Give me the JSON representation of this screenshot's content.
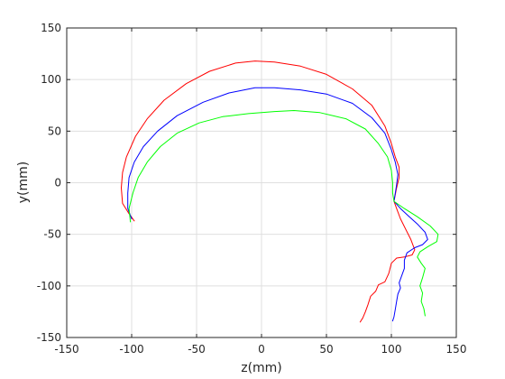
{
  "chart_data": {
    "type": "line",
    "xlabel": "z(mm)",
    "ylabel": "y(mm)",
    "xlim": [
      -150,
      150
    ],
    "ylim": [
      -150,
      150
    ],
    "xticks": [
      -150,
      -100,
      -50,
      0,
      50,
      100,
      150
    ],
    "yticks": [
      -150,
      -100,
      -50,
      0,
      50,
      100,
      150
    ],
    "grid": true,
    "series": [
      {
        "color": "#ff0000",
        "points": [
          [
            -98,
            -37
          ],
          [
            -102,
            -30
          ],
          [
            -107,
            -20
          ],
          [
            -108,
            -5
          ],
          [
            -107,
            10
          ],
          [
            -104,
            25
          ],
          [
            -97,
            45
          ],
          [
            -88,
            62
          ],
          [
            -75,
            80
          ],
          [
            -58,
            96
          ],
          [
            -40,
            108
          ],
          [
            -20,
            116
          ],
          [
            -5,
            118
          ],
          [
            10,
            117
          ],
          [
            30,
            113
          ],
          [
            50,
            105
          ],
          [
            70,
            91
          ],
          [
            85,
            75
          ],
          [
            95,
            55
          ],
          [
            100,
            38
          ],
          [
            103,
            25
          ],
          [
            106,
            15
          ],
          [
            106,
            5
          ],
          [
            104,
            -5
          ],
          [
            102,
            -18
          ],
          [
            104,
            -25
          ],
          [
            107,
            -35
          ],
          [
            111,
            -45
          ],
          [
            115,
            -55
          ],
          [
            118,
            -65
          ],
          [
            116,
            -70
          ],
          [
            110,
            -72
          ],
          [
            104,
            -73
          ],
          [
            100,
            -78
          ],
          [
            98,
            -88
          ],
          [
            95,
            -96
          ],
          [
            90,
            -99
          ],
          [
            88,
            -105
          ],
          [
            84,
            -110
          ],
          [
            82,
            -118
          ],
          [
            80,
            -125
          ],
          [
            78,
            -131
          ],
          [
            76,
            -135
          ]
        ]
      },
      {
        "color": "#0000ff",
        "points": [
          [
            -100,
            -35
          ],
          [
            -103,
            -25
          ],
          [
            -103,
            -10
          ],
          [
            -102,
            5
          ],
          [
            -98,
            20
          ],
          [
            -91,
            35
          ],
          [
            -80,
            50
          ],
          [
            -65,
            65
          ],
          [
            -45,
            78
          ],
          [
            -25,
            87
          ],
          [
            -5,
            92
          ],
          [
            10,
            92
          ],
          [
            30,
            90
          ],
          [
            50,
            86
          ],
          [
            70,
            77
          ],
          [
            85,
            63
          ],
          [
            95,
            48
          ],
          [
            100,
            32
          ],
          [
            103,
            20
          ],
          [
            105,
            8
          ],
          [
            104,
            -2
          ],
          [
            102,
            -18
          ],
          [
            107,
            -25
          ],
          [
            113,
            -32
          ],
          [
            120,
            -40
          ],
          [
            126,
            -48
          ],
          [
            128,
            -55
          ],
          [
            124,
            -60
          ],
          [
            118,
            -63
          ],
          [
            112,
            -68
          ],
          [
            110,
            -75
          ],
          [
            110,
            -83
          ],
          [
            108,
            -90
          ],
          [
            106,
            -97
          ],
          [
            107,
            -102
          ],
          [
            105,
            -108
          ],
          [
            104,
            -115
          ],
          [
            103,
            -123
          ],
          [
            102,
            -130
          ],
          [
            101,
            -134
          ]
        ]
      },
      {
        "color": "#00ff00",
        "points": [
          [
            -101,
            -38
          ],
          [
            -102,
            -25
          ],
          [
            -99,
            -10
          ],
          [
            -95,
            5
          ],
          [
            -88,
            20
          ],
          [
            -78,
            35
          ],
          [
            -65,
            48
          ],
          [
            -48,
            58
          ],
          [
            -30,
            64
          ],
          [
            -10,
            67
          ],
          [
            10,
            69
          ],
          [
            25,
            70
          ],
          [
            45,
            68
          ],
          [
            65,
            62
          ],
          [
            80,
            52
          ],
          [
            90,
            38
          ],
          [
            97,
            25
          ],
          [
            100,
            12
          ],
          [
            101,
            0
          ],
          [
            101,
            -10
          ],
          [
            102,
            -18
          ],
          [
            110,
            -25
          ],
          [
            120,
            -33
          ],
          [
            130,
            -42
          ],
          [
            136,
            -50
          ],
          [
            135,
            -57
          ],
          [
            128,
            -62
          ],
          [
            122,
            -67
          ],
          [
            120,
            -72
          ],
          [
            123,
            -78
          ],
          [
            126,
            -83
          ],
          [
            124,
            -92
          ],
          [
            122,
            -100
          ],
          [
            124,
            -107
          ],
          [
            123,
            -115
          ],
          [
            125,
            -122
          ],
          [
            126,
            -129
          ]
        ]
      }
    ]
  }
}
